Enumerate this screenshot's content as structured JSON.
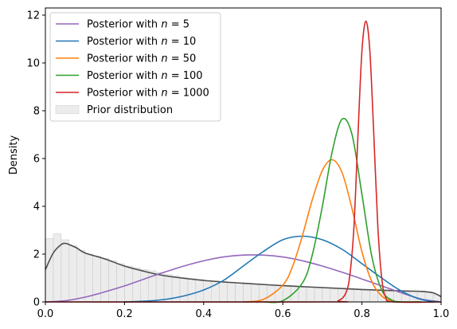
{
  "chart_data": {
    "type": "line",
    "title": "",
    "xlabel": "",
    "ylabel": "Density",
    "xlim": [
      0,
      1
    ],
    "ylim": [
      0,
      12.3
    ],
    "xticks": [
      0.0,
      0.2,
      0.4,
      0.6,
      0.8,
      1.0
    ],
    "xtick_labels": [
      "0.0",
      "0.2",
      "0.4",
      "0.6",
      "0.8",
      "1.0"
    ],
    "yticks": [
      0,
      2,
      4,
      6,
      8,
      10,
      12
    ],
    "ytick_labels": [
      "0",
      "2",
      "4",
      "6",
      "8",
      "10",
      "12"
    ],
    "grid": false,
    "legend_position": "top-left",
    "series": [
      {
        "name": "Posterior with n = 5",
        "legend_label": "Posterior with ",
        "n_value": "5",
        "color": "#9467bd",
        "x": [
          0.0,
          0.05,
          0.1,
          0.15,
          0.2,
          0.25,
          0.3,
          0.35,
          0.4,
          0.45,
          0.5,
          0.55,
          0.6,
          0.65,
          0.7,
          0.75,
          0.8,
          0.85,
          0.9,
          0.95,
          1.0
        ],
        "y": [
          0.0,
          0.05,
          0.2,
          0.42,
          0.67,
          0.96,
          1.24,
          1.5,
          1.72,
          1.88,
          1.96,
          1.96,
          1.88,
          1.72,
          1.5,
          1.24,
          0.96,
          0.67,
          0.38,
          0.12,
          0.0
        ]
      },
      {
        "name": "Posterior with n = 10",
        "legend_label": "Posterior with ",
        "n_value": "10",
        "color": "#1f77b4",
        "x": [
          0.2,
          0.25,
          0.3,
          0.35,
          0.4,
          0.45,
          0.5,
          0.55,
          0.6,
          0.65,
          0.7,
          0.75,
          0.8,
          0.85,
          0.9,
          0.95,
          1.0
        ],
        "y": [
          0.0,
          0.03,
          0.1,
          0.25,
          0.5,
          0.9,
          1.5,
          2.1,
          2.6,
          2.75,
          2.6,
          2.2,
          1.6,
          1.0,
          0.45,
          0.1,
          0.0
        ]
      },
      {
        "name": "Posterior with n = 50",
        "legend_label": "Posterior with ",
        "n_value": "50",
        "color": "#ff7f0e",
        "x": [
          0.5,
          0.55,
          0.6,
          0.625,
          0.65,
          0.675,
          0.7,
          0.725,
          0.75,
          0.775,
          0.8,
          0.825,
          0.85,
          0.875,
          0.9,
          0.95
        ],
        "y": [
          0.0,
          0.1,
          0.7,
          1.5,
          2.8,
          4.3,
          5.5,
          5.95,
          5.4,
          3.9,
          2.1,
          0.85,
          0.25,
          0.05,
          0.0,
          0.0
        ]
      },
      {
        "name": "Posterior with n = 100",
        "legend_label": "Posterior with ",
        "n_value": "100",
        "color": "#2ca02c",
        "x": [
          0.55,
          0.6,
          0.65,
          0.675,
          0.7,
          0.725,
          0.75,
          0.775,
          0.8,
          0.825,
          0.85,
          0.875,
          0.9,
          0.95
        ],
        "y": [
          0.0,
          0.05,
          0.8,
          2.0,
          4.0,
          6.3,
          7.65,
          7.0,
          4.5,
          1.9,
          0.5,
          0.08,
          0.0,
          0.0
        ]
      },
      {
        "name": "Posterior with n = 1000",
        "legend_label": "Posterior with ",
        "n_value": "1000",
        "color": "#d62728",
        "x": [
          0.0,
          0.7,
          0.74,
          0.76,
          0.77,
          0.78,
          0.79,
          0.8,
          0.81,
          0.82,
          0.83,
          0.84,
          0.85,
          0.86,
          0.88,
          1.0
        ],
        "y": [
          0.0,
          0.0,
          0.05,
          0.4,
          1.2,
          3.2,
          7.0,
          10.5,
          11.75,
          10.5,
          7.0,
          3.2,
          1.0,
          0.2,
          0.0,
          0.0
        ]
      },
      {
        "name": "Prior density",
        "color": "#4d4d4d",
        "legend": false,
        "x": [
          0.0,
          0.02,
          0.04,
          0.05,
          0.06,
          0.08,
          0.1,
          0.15,
          0.2,
          0.25,
          0.3,
          0.4,
          0.5,
          0.6,
          0.7,
          0.8,
          0.9,
          0.95,
          0.98,
          1.0
        ],
        "y": [
          1.35,
          2.05,
          2.4,
          2.45,
          2.4,
          2.25,
          2.05,
          1.8,
          1.5,
          1.28,
          1.1,
          0.9,
          0.78,
          0.68,
          0.6,
          0.52,
          0.46,
          0.44,
          0.38,
          0.22
        ]
      }
    ],
    "prior_histogram": {
      "name": "Prior distribution",
      "color": "#e0e0e0",
      "bin_width": 0.02,
      "bin_starts": [
        0.0,
        0.02,
        0.04,
        0.06,
        0.08,
        0.1,
        0.12,
        0.14,
        0.16,
        0.18,
        0.2,
        0.22,
        0.24,
        0.26,
        0.28,
        0.3,
        0.32,
        0.34,
        0.36,
        0.38,
        0.4,
        0.42,
        0.44,
        0.46,
        0.48,
        0.5,
        0.52,
        0.54,
        0.56,
        0.58,
        0.6,
        0.62,
        0.64,
        0.66,
        0.68,
        0.7,
        0.72,
        0.74,
        0.76,
        0.78,
        0.8,
        0.82,
        0.84,
        0.86,
        0.88,
        0.9,
        0.92,
        0.94,
        0.96,
        0.98
      ],
      "heights": [
        2.65,
        2.85,
        2.6,
        2.35,
        2.15,
        2.0,
        1.92,
        1.82,
        1.72,
        1.6,
        1.5,
        1.43,
        1.36,
        1.3,
        1.22,
        1.14,
        1.08,
        1.02,
        0.98,
        0.94,
        0.9,
        0.88,
        0.86,
        0.83,
        0.8,
        0.78,
        0.76,
        0.74,
        0.72,
        0.7,
        0.68,
        0.66,
        0.64,
        0.62,
        0.62,
        0.6,
        0.58,
        0.57,
        0.55,
        0.53,
        0.52,
        0.5,
        0.5,
        0.49,
        0.48,
        0.47,
        0.46,
        0.45,
        0.4,
        0.3
      ]
    }
  }
}
